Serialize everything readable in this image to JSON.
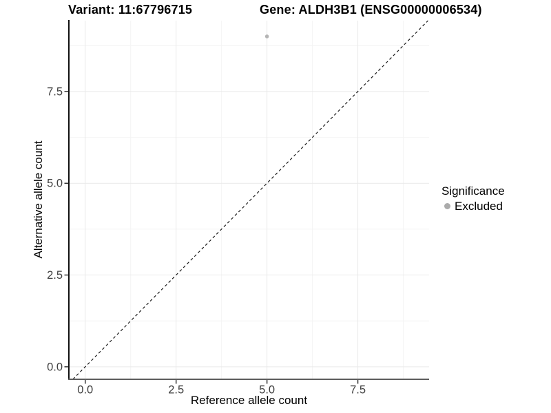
{
  "chart_data": {
    "type": "scatter",
    "title_left": "Variant: 11:67796715",
    "title_right": "Gene: ALDH3B1 (ENSG00000006534)",
    "xlabel": "Reference allele count",
    "ylabel": "Alternative allele count",
    "xlim": [
      -0.45,
      9.46
    ],
    "ylim": [
      -0.34,
      9.43
    ],
    "x_major_ticks": [
      0,
      2.5,
      5,
      7.5
    ],
    "y_major_ticks": [
      0,
      2.5,
      5,
      7.5
    ],
    "x_minor_ticks": [
      1.25,
      3.75,
      6.25,
      8.75
    ],
    "y_minor_ticks": [
      1.25,
      3.75,
      6.25,
      8.75
    ],
    "tick_label_format": "one_decimal",
    "grid": "major+minor",
    "legend_position": "right",
    "legend": {
      "title": "Significance",
      "entries": [
        {
          "label": "Excluded",
          "color": "#ababab"
        }
      ]
    },
    "series": [
      {
        "name": "Excluded",
        "points": [
          {
            "x": 5,
            "y": 9
          }
        ]
      }
    ],
    "identity_line": {
      "slope": 1,
      "intercept": 0,
      "linetype": "dashed"
    }
  },
  "colors": {
    "background": "#ffffff",
    "point": "#b5b5b5",
    "grid_major": "#e9e9e9",
    "grid_minor": "#f4f4f4",
    "axis_line_left": "#111111",
    "axis_line_bottom": "#5c5c5c",
    "tick_mark": "#333333",
    "tick_label": "#404040",
    "identity_line": "#1a1a1a"
  }
}
